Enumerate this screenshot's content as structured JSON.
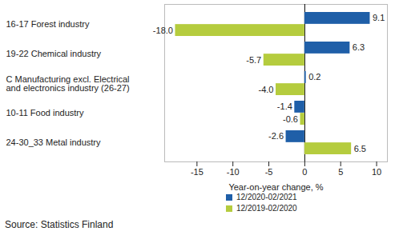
{
  "chart_data": {
    "type": "bar",
    "orientation": "horizontal",
    "categories": [
      "16-17 Forest industry",
      "19-22 Chemical industry",
      "C Manufacturing excl. Electrical\nand electronics industry (26-27)",
      "10-11 Food industry",
      "24-30_33 Metal industry"
    ],
    "series": [
      {
        "name": "12/2020-02/2021",
        "color": "#1f5fa8",
        "values": [
          9.1,
          6.3,
          0.2,
          -1.4,
          -2.6
        ],
        "value_labels": [
          "9.1",
          "6.3",
          "0.2",
          "-1.4",
          "-2.6"
        ]
      },
      {
        "name": "12/2019-02/2020",
        "color": "#b5cc3e",
        "values": [
          -18.0,
          -5.7,
          -4.0,
          -0.6,
          6.5
        ],
        "value_labels": [
          "-18.0",
          "-5.7",
          "-4.0",
          "-0.6",
          "6.5"
        ]
      }
    ],
    "x_label": "Year-on-year change, %",
    "xlim": [
      -19.5,
      11.5
    ],
    "xticks": [
      -15,
      -10,
      -5,
      0,
      5,
      10
    ],
    "data_labels": true,
    "legend": "bottom",
    "grid": false,
    "source": "Source: Statistics Finland"
  }
}
